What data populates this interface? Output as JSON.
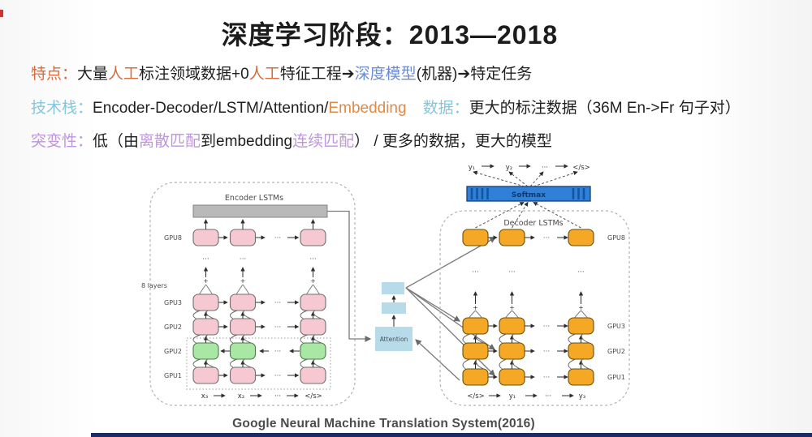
{
  "header": {
    "title": "深度学习阶段：2013—2018",
    "lines": [
      {
        "name": "line-features",
        "segments": [
          {
            "t": "特点：",
            "c": "orange"
          },
          {
            "t": "大量",
            "c": "dark"
          },
          {
            "t": "人工",
            "c": "orange"
          },
          {
            "t": "标注领域数据+0",
            "c": "dark"
          },
          {
            "t": "人工",
            "c": "orange"
          },
          {
            "t": "特征工程",
            "c": "dark"
          },
          {
            "t": "➔",
            "c": "dark"
          },
          {
            "t": "深度模型",
            "c": "blue"
          },
          {
            "t": "(机器)",
            "c": "dark"
          },
          {
            "t": "➔特定任务",
            "c": "dark"
          }
        ]
      },
      {
        "name": "line-tech-stack",
        "segments": [
          {
            "t": "技术栈：",
            "c": "cyan"
          },
          {
            "t": "Encoder-Decoder/LSTM/Attention/",
            "c": "dark"
          },
          {
            "t": "Embedding",
            "c": "orange2"
          },
          {
            "t": "数据：",
            "c": "cyan",
            "gap": true
          },
          {
            "t": "更大的标注数据（36M En->Fr 句子对）",
            "c": "dark"
          }
        ]
      },
      {
        "name": "line-mutation",
        "segments": [
          {
            "t": "突变性：",
            "c": "purple"
          },
          {
            "t": "低（由",
            "c": "dark"
          },
          {
            "t": "离散匹配",
            "c": "purple"
          },
          {
            "t": "到embedding",
            "c": "dark"
          },
          {
            "t": "连续匹配",
            "c": "purple"
          },
          {
            "t": "） / 更多的数据，更大的模型",
            "c": "dark"
          }
        ]
      }
    ]
  },
  "diagram": {
    "encoder": {
      "title": "Encoder LSTMs",
      "layers_label": "8 layers",
      "row_labels": [
        "GPU8",
        "GPU3",
        "GPU2",
        "GPU2",
        "GPU1"
      ],
      "input_tokens": [
        "x₃",
        "x₂",
        "···",
        "</s>"
      ]
    },
    "decoder": {
      "title": "Decoder LSTMs",
      "row_labels": [
        "GPU8",
        "GPU3",
        "GPU2",
        "GPU1"
      ],
      "softmax_label": "Softmax",
      "output_tokens_top": [
        "y₁",
        "y₂",
        "···",
        "</s>"
      ],
      "input_tokens": [
        "</s>",
        "y₁",
        "···",
        "y₃"
      ]
    },
    "attention_label": "Attention",
    "plus_symbol": "+",
    "dots": "···",
    "caption": "Google Neural Machine Translation System(2016)"
  },
  "colors": {
    "orange": "#db6a3a",
    "orange2": "#e08a45",
    "blue": "#6c8cd5",
    "cyan": "#85c6de",
    "purple": "#bd97d9",
    "dark": "#1f1f1f",
    "pink_box": "#f6c9d2",
    "green_box": "#a9e7a4",
    "orange_box": "#f5a726",
    "box_border": "#6f6f6f",
    "orange_border": "#6b4e08",
    "gray_bar": "#b9b9b9",
    "attention_box": "#b8dbe9",
    "softmax_bar": "#2f80d6",
    "softmax_stripe": "#1255a0",
    "softmax_border": "#123f7a",
    "softmax_text": "#0b3a73",
    "container_border": "#b2b2b2",
    "wire": "#7a7a7a",
    "arrow": "#2e2e2e",
    "label_text": "#4a4a4a",
    "bottom_bar": "#1d2b63",
    "corner_mark": "#cc3333"
  }
}
